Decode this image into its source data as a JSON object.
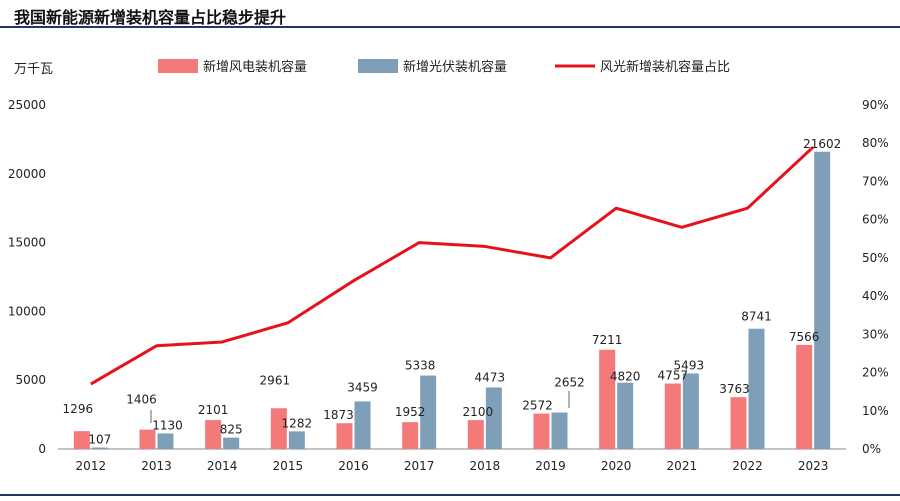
{
  "title": "我国新能源新增装机容量占比稳步提升",
  "chart_data": {
    "type": "bar",
    "title": "我国新能源新增装机容量占比稳步提升",
    "y_unit_label": "万千瓦",
    "categories": [
      "2012",
      "2013",
      "2014",
      "2015",
      "2016",
      "2017",
      "2018",
      "2019",
      "2020",
      "2021",
      "2022",
      "2023"
    ],
    "series": [
      {
        "name": "新增风电装机容量",
        "type": "bar",
        "axis": "left",
        "color": "#f47a7a",
        "values": [
          1296,
          1406,
          2101,
          2961,
          1873,
          1952,
          2100,
          2572,
          7211,
          4757,
          3763,
          7566
        ]
      },
      {
        "name": "新增光伏装机容量",
        "type": "bar",
        "axis": "left",
        "color": "#7f9fb8",
        "values": [
          107,
          1130,
          825,
          1282,
          3459,
          5338,
          4473,
          2652,
          4820,
          5493,
          8741,
          21602
        ]
      },
      {
        "name": "风光新增装机容量占比",
        "type": "line",
        "axis": "right",
        "color": "#e8111b",
        "values": [
          17,
          27,
          28,
          33,
          44,
          54,
          53,
          50,
          63,
          58,
          63,
          79
        ]
      }
    ],
    "y_left": {
      "min": 0,
      "max": 25000,
      "ticks": [
        0,
        5000,
        10000,
        15000,
        20000,
        25000
      ]
    },
    "y_right": {
      "min": 0,
      "max": 90,
      "ticks": [
        "0%",
        "10%",
        "20%",
        "30%",
        "40%",
        "50%",
        "60%",
        "70%",
        "80%",
        "90%"
      ]
    },
    "legend_position": "top",
    "grid": false
  }
}
